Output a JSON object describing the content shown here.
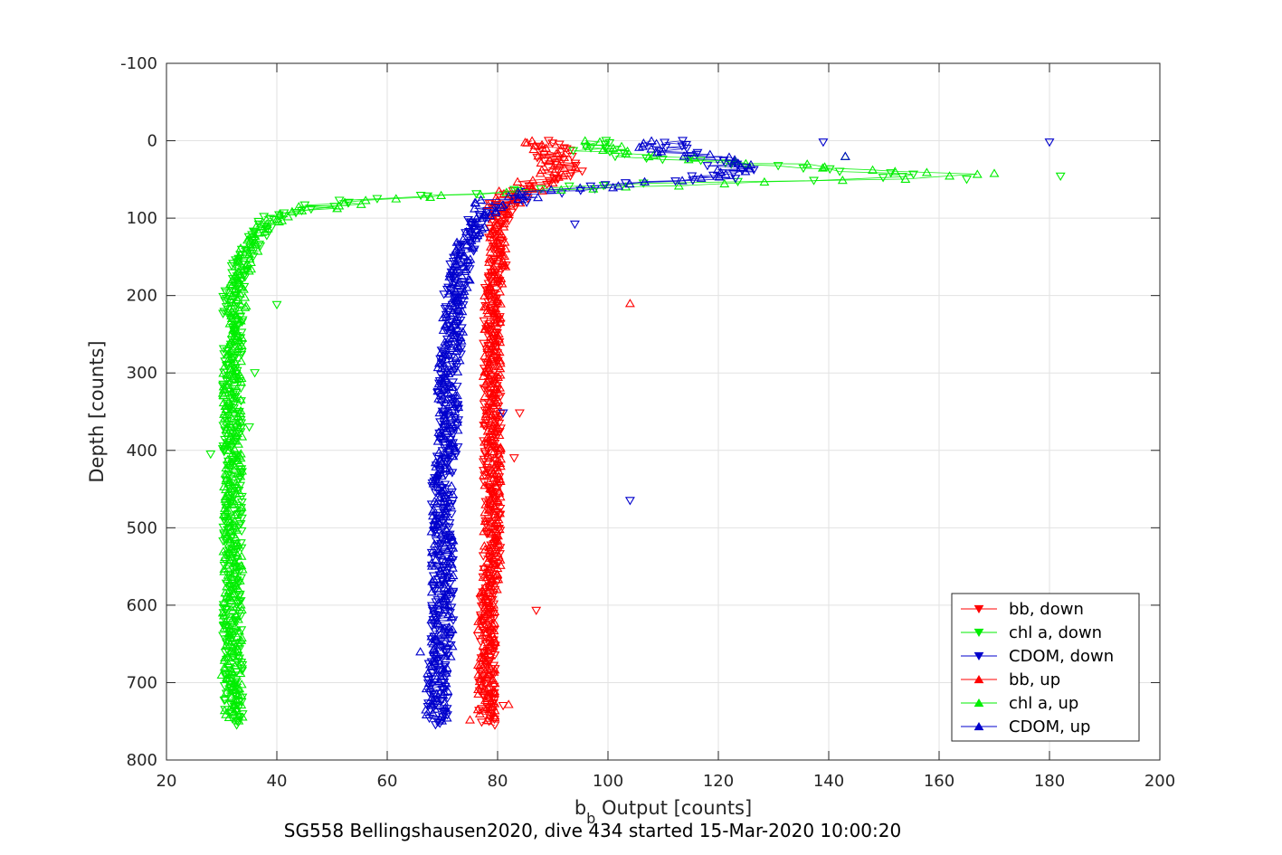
{
  "chart_data": {
    "type": "scatter",
    "title": "",
    "subtitle": "SG558 Bellingshausen2020, dive 434 started 15-Mar-2020 10:00:20",
    "xlabel": {
      "main": "b",
      "sub": "b",
      "rest": " Output [counts]"
    },
    "ylabel": "Depth [counts]",
    "xlim": [
      20,
      200
    ],
    "ylim": [
      -100,
      800
    ],
    "y_reversed": true,
    "grid": true,
    "legend_position": "bottom-right",
    "x_ticks": [
      "20",
      "40",
      "60",
      "80",
      "100",
      "120",
      "140",
      "160",
      "180",
      "200"
    ],
    "y_ticks": [
      "-100",
      "0",
      "100",
      "200",
      "300",
      "400",
      "500",
      "600",
      "700",
      "800"
    ],
    "series": [
      {
        "name": "bb, down",
        "color": "#ff0000",
        "marker": "triangle-down",
        "profile": [
          [
            0,
            88
          ],
          [
            5,
            90
          ],
          [
            15,
            91
          ],
          [
            25,
            90
          ],
          [
            35,
            92
          ],
          [
            45,
            91
          ],
          [
            55,
            88
          ],
          [
            65,
            85
          ],
          [
            75,
            83
          ],
          [
            85,
            82
          ],
          [
            95,
            81
          ],
          [
            110,
            80
          ],
          [
            130,
            80
          ],
          [
            150,
            80
          ],
          [
            170,
            80
          ],
          [
            190,
            79
          ],
          [
            210,
            79
          ],
          [
            250,
            79
          ],
          [
            300,
            79
          ],
          [
            350,
            79
          ],
          [
            400,
            79
          ],
          [
            450,
            79
          ],
          [
            500,
            79
          ],
          [
            550,
            79
          ],
          [
            600,
            78
          ],
          [
            650,
            78
          ],
          [
            700,
            78
          ],
          [
            755,
            78
          ]
        ],
        "spread": 1.6,
        "outliers": [
          [
            87,
            607
          ],
          [
            83,
            410
          ],
          [
            84,
            352
          ],
          [
            81,
            730
          ]
        ]
      },
      {
        "name": "chl a, down",
        "color": "#00ee00",
        "marker": "triangle-down",
        "profile": [
          [
            0,
            97
          ],
          [
            10,
            95
          ],
          [
            20,
            105
          ],
          [
            30,
            125
          ],
          [
            40,
            145
          ],
          [
            45,
            160
          ],
          [
            50,
            140
          ],
          [
            55,
            110
          ],
          [
            60,
            95
          ],
          [
            65,
            85
          ],
          [
            70,
            70
          ],
          [
            75,
            58
          ],
          [
            80,
            52
          ],
          [
            85,
            48
          ],
          [
            90,
            44
          ],
          [
            95,
            41
          ],
          [
            100,
            39
          ],
          [
            110,
            38
          ],
          [
            120,
            37
          ],
          [
            130,
            36
          ],
          [
            140,
            35
          ],
          [
            150,
            34
          ],
          [
            160,
            33
          ],
          [
            180,
            33
          ],
          [
            200,
            32
          ],
          [
            250,
            32
          ],
          [
            300,
            32
          ],
          [
            350,
            32
          ],
          [
            400,
            32
          ],
          [
            450,
            32
          ],
          [
            500,
            32
          ],
          [
            550,
            32
          ],
          [
            600,
            32
          ],
          [
            650,
            32
          ],
          [
            700,
            32
          ],
          [
            755,
            32
          ]
        ],
        "spread": 1.8,
        "outliers": [
          [
            182,
            46
          ],
          [
            165,
            50
          ],
          [
            40,
            212
          ],
          [
            28,
            405
          ],
          [
            35,
            370
          ],
          [
            36,
            300
          ]
        ]
      },
      {
        "name": "CDOM, down",
        "color": "#0000cc",
        "marker": "triangle-down",
        "profile": [
          [
            0,
            110
          ],
          [
            10,
            112
          ],
          [
            20,
            115
          ],
          [
            30,
            120
          ],
          [
            40,
            122
          ],
          [
            50,
            118
          ],
          [
            55,
            108
          ],
          [
            60,
            98
          ],
          [
            65,
            90
          ],
          [
            70,
            85
          ],
          [
            75,
            82
          ],
          [
            80,
            80
          ],
          [
            90,
            78
          ],
          [
            100,
            77
          ],
          [
            110,
            76
          ],
          [
            120,
            75
          ],
          [
            140,
            74
          ],
          [
            160,
            73
          ],
          [
            180,
            73
          ],
          [
            200,
            72
          ],
          [
            250,
            72
          ],
          [
            300,
            71
          ],
          [
            350,
            71
          ],
          [
            400,
            71
          ],
          [
            450,
            70
          ],
          [
            500,
            70
          ],
          [
            550,
            70
          ],
          [
            600,
            70
          ],
          [
            650,
            70
          ],
          [
            700,
            69
          ],
          [
            755,
            69
          ]
        ],
        "spread": 2.0,
        "outliers": [
          [
            180,
            2
          ],
          [
            139,
            2
          ],
          [
            104,
            465
          ],
          [
            81,
            352
          ],
          [
            94,
            108
          ]
        ]
      },
      {
        "name": "bb, up",
        "color": "#ff0000",
        "marker": "triangle-up",
        "profile": [
          [
            0,
            88
          ],
          [
            10,
            90
          ],
          [
            20,
            91
          ],
          [
            30,
            92
          ],
          [
            40,
            91
          ],
          [
            50,
            88
          ],
          [
            60,
            85
          ],
          [
            70,
            83
          ],
          [
            80,
            82
          ],
          [
            90,
            81
          ],
          [
            110,
            80
          ],
          [
            140,
            80
          ],
          [
            170,
            80
          ],
          [
            200,
            79
          ],
          [
            250,
            79
          ],
          [
            300,
            79
          ],
          [
            350,
            79
          ],
          [
            400,
            79
          ],
          [
            450,
            79
          ],
          [
            500,
            79
          ],
          [
            550,
            79
          ],
          [
            600,
            78
          ],
          [
            650,
            78
          ],
          [
            700,
            78
          ],
          [
            750,
            78
          ]
        ],
        "spread": 1.6,
        "outliers": [
          [
            104,
            210
          ],
          [
            85,
            2
          ],
          [
            75,
            748
          ],
          [
            82,
            728
          ]
        ]
      },
      {
        "name": "chl a, up",
        "color": "#00ee00",
        "marker": "triangle-up",
        "profile": [
          [
            0,
            98
          ],
          [
            10,
            100
          ],
          [
            20,
            110
          ],
          [
            30,
            130
          ],
          [
            40,
            150
          ],
          [
            45,
            168
          ],
          [
            50,
            145
          ],
          [
            55,
            120
          ],
          [
            60,
            100
          ],
          [
            65,
            88
          ],
          [
            70,
            72
          ],
          [
            75,
            62
          ],
          [
            80,
            54
          ],
          [
            85,
            49
          ],
          [
            90,
            45
          ],
          [
            95,
            42
          ],
          [
            100,
            40
          ],
          [
            110,
            38
          ],
          [
            120,
            37
          ],
          [
            140,
            35
          ],
          [
            160,
            34
          ],
          [
            180,
            33
          ],
          [
            200,
            33
          ],
          [
            250,
            32
          ],
          [
            300,
            32
          ],
          [
            350,
            32
          ],
          [
            400,
            32
          ],
          [
            450,
            32
          ],
          [
            500,
            32
          ],
          [
            550,
            32
          ],
          [
            600,
            32
          ],
          [
            650,
            32
          ],
          [
            700,
            32
          ],
          [
            750,
            32
          ]
        ],
        "spread": 1.8,
        "outliers": [
          [
            170,
            42
          ],
          [
            143,
            20
          ],
          [
            30,
            690
          ]
        ]
      },
      {
        "name": "CDOM, up",
        "color": "#0000cc",
        "marker": "triangle-up",
        "profile": [
          [
            0,
            108
          ],
          [
            10,
            111
          ],
          [
            20,
            116
          ],
          [
            30,
            121
          ],
          [
            40,
            124
          ],
          [
            50,
            117
          ],
          [
            55,
            106
          ],
          [
            60,
            96
          ],
          [
            65,
            89
          ],
          [
            70,
            85
          ],
          [
            75,
            82
          ],
          [
            80,
            80
          ],
          [
            90,
            78
          ],
          [
            100,
            77
          ],
          [
            120,
            75
          ],
          [
            140,
            74
          ],
          [
            160,
            73
          ],
          [
            180,
            73
          ],
          [
            200,
            72
          ],
          [
            250,
            72
          ],
          [
            300,
            71
          ],
          [
            350,
            71
          ],
          [
            400,
            71
          ],
          [
            450,
            70
          ],
          [
            500,
            70
          ],
          [
            550,
            70
          ],
          [
            600,
            70
          ],
          [
            650,
            70
          ],
          [
            700,
            69
          ],
          [
            750,
            69
          ]
        ],
        "spread": 2.0,
        "outliers": [
          [
            143,
            20
          ],
          [
            66,
            660
          ],
          [
            67,
            735
          ]
        ]
      }
    ]
  }
}
